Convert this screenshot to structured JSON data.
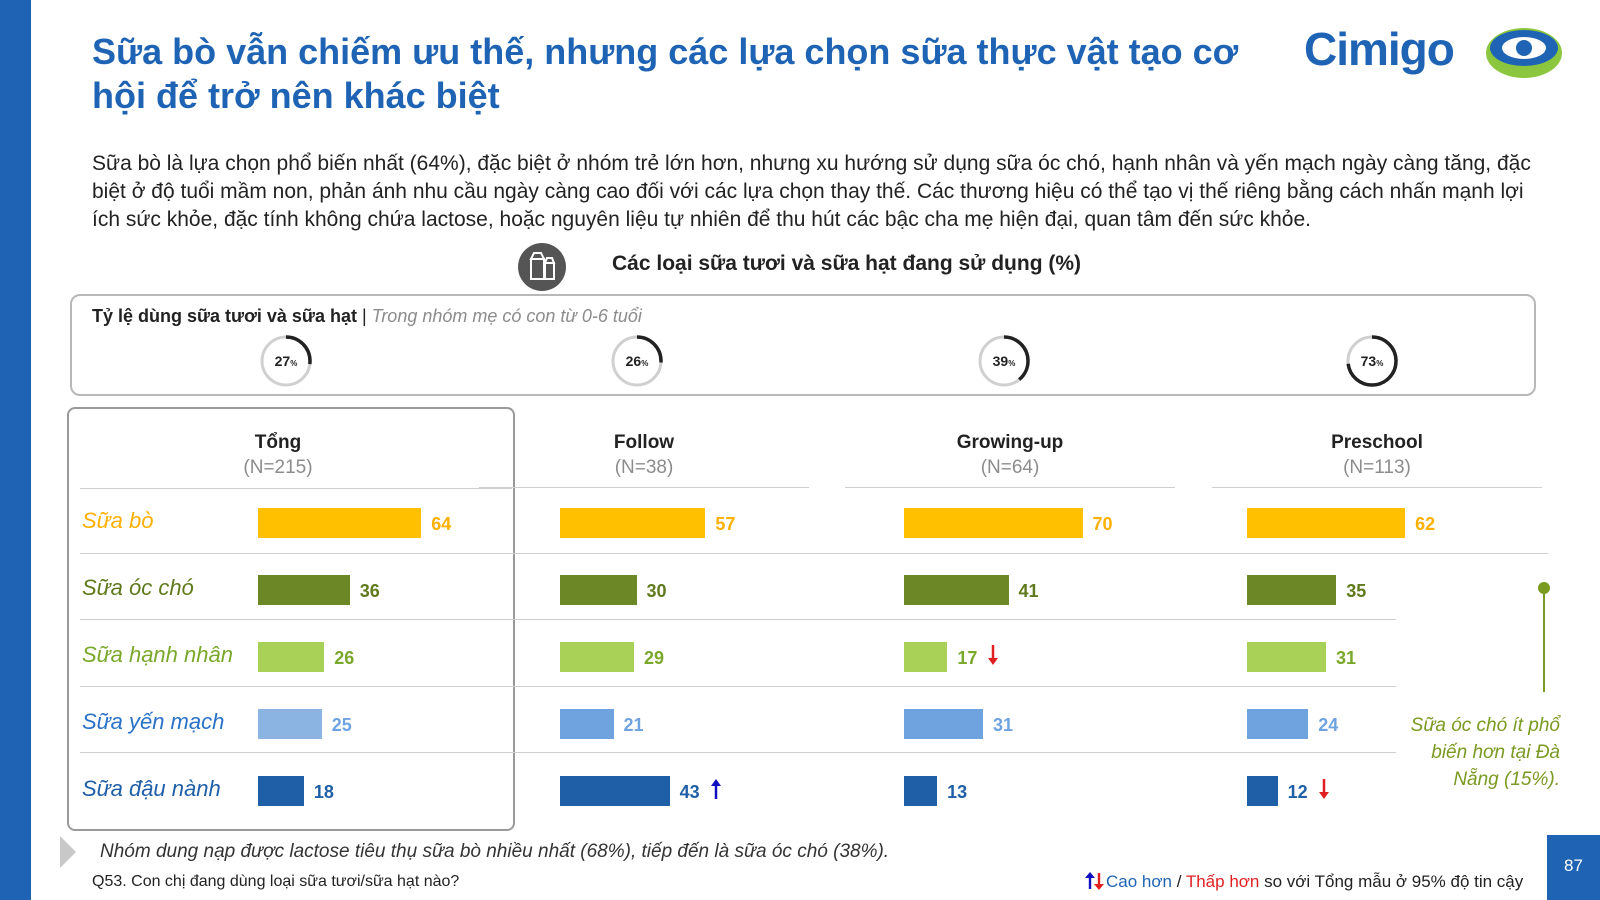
{
  "title": "Sữa bò vẫn chiếm ưu thế, nhưng các lựa chọn sữa thực vật tạo cơ hội để trở nên khác biệt",
  "logo": "Cimigo",
  "intro": "Sữa bò là lựa chọn phổ biến nhất (64%), đặc biệt ở nhóm trẻ lớn hơn, nhưng xu hướng sử dụng sữa óc chó, hạnh nhân và yến mạch ngày càng tăng, đặc biệt ở độ tuổi mầm non, phản ánh nhu cầu ngày càng cao đối với các lựa chọn thay thế. Các thương hiệu có thể tạo vị thế riêng bằng cách nhấn mạnh lợi ích sức khỏe, đặc tính không chứa lactose, hoặc nguyên liệu tự nhiên để thu hút các bậc cha mẹ hiện đại, quan tâm đến sức khỏe.",
  "subtitle": "Các loại sữa tươi và sữa hạt đang sử dụng (%)",
  "usage_rate": {
    "label_bold": "Tỷ lệ dùng sữa tươi và sữa hạt",
    "label_sep": " | ",
    "label_italic": "Trong nhóm mẹ có con từ 0-6 tuổi",
    "unit": "%"
  },
  "colors": {
    "brand_blue": "#1f64b4",
    "cow": "#ffc000",
    "walnut": "#6b8726",
    "almond": "#a9d157",
    "oat": "#8cb4e3",
    "oat_other": "#6fa3e0",
    "soy": "#1f5fa8",
    "up_arrow": "#1010c0",
    "down_arrow": "#e02020"
  },
  "chart_data": {
    "type": "bar",
    "title": "Các loại sữa tươi và sữa hạt đang sử dụng (%)",
    "categories": [
      "Sữa bò",
      "Sữa óc chó",
      "Sữa hạnh nhân",
      "Sữa yến mạch",
      "Sữa đậu nành"
    ],
    "series": [
      {
        "name": "Tổng",
        "n_label": "(N=215)",
        "usage_rate": 27,
        "values": [
          64,
          36,
          26,
          25,
          18
        ],
        "flags": [
          "",
          "",
          "",
          "",
          ""
        ]
      },
      {
        "name": "Follow",
        "n_label": "(N=38)",
        "usage_rate": 26,
        "values": [
          57,
          30,
          29,
          21,
          43
        ],
        "flags": [
          "",
          "",
          "",
          "",
          "up"
        ]
      },
      {
        "name": "Growing-up",
        "n_label": "(N=64)",
        "usage_rate": 39,
        "values": [
          70,
          41,
          17,
          31,
          13
        ],
        "flags": [
          "",
          "",
          "down",
          "",
          ""
        ]
      },
      {
        "name": "Preschool",
        "n_label": "(N=113)",
        "usage_rate": 73,
        "values": [
          62,
          35,
          31,
          24,
          12
        ],
        "flags": [
          "",
          "",
          "",
          "",
          "down"
        ]
      }
    ]
  },
  "callout": "Sữa óc chó ít phổ biến hơn tại Đà Nẵng (15%).",
  "footnote": "Nhóm dung nạp được lactose tiêu thụ sữa bò nhiều nhất (68%), tiếp đến là sữa óc chó (38%).",
  "question": "Q53. Con chị đang dùng loại sữa tươi/sữa hạt nào?",
  "legend": {
    "up": "Cao hơn",
    "sep": " / ",
    "down": "Thấp hơn",
    "rest": " so với Tổng mẫu ở 95% độ tin cậy"
  },
  "page_number": "87"
}
